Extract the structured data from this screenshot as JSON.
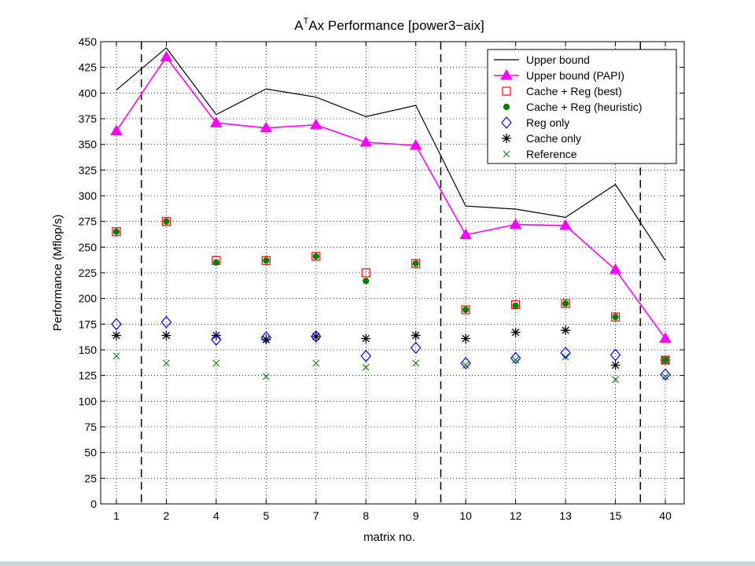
{
  "chart_data": {
    "type": "line",
    "title": {
      "prefix": "A",
      "superscript": "T",
      "rest": "Ax Performance [power3−aix]"
    },
    "xlabel": "matrix no.",
    "ylabel": "Performance (Mflop/s)",
    "categories": [
      "1",
      "2",
      "4",
      "5",
      "7",
      "8",
      "9",
      "10",
      "12",
      "13",
      "15",
      "40"
    ],
    "ylim": [
      0,
      450
    ],
    "yticks": [
      0,
      25,
      50,
      75,
      100,
      125,
      150,
      175,
      200,
      225,
      250,
      275,
      300,
      325,
      350,
      375,
      400,
      425,
      450
    ],
    "grid": true,
    "legend_position": "top-right",
    "group_separators_after_index": [
      0,
      6,
      10
    ],
    "series": [
      {
        "name": "Upper bound",
        "marker": "none",
        "line": true,
        "color": "#000000",
        "values": [
          403,
          444,
          379,
          404,
          396,
          377,
          388,
          290,
          287,
          279,
          311,
          237
        ]
      },
      {
        "name": "Upper bound (PAPI)",
        "marker": "triangle",
        "line": true,
        "color": "#ff00ff",
        "values": [
          363,
          435,
          371,
          366,
          369,
          352,
          349,
          262,
          272,
          271,
          228,
          161
        ]
      },
      {
        "name": "Cache + Reg (best)",
        "marker": "square",
        "line": false,
        "color": "#ff0000",
        "values": [
          265,
          275,
          237,
          237,
          241,
          225,
          234,
          189,
          194,
          195,
          182,
          140
        ]
      },
      {
        "name": "Cache + Reg (heuristic)",
        "marker": "dot",
        "line": false,
        "color": "#008000",
        "values": [
          265,
          275,
          235,
          237,
          241,
          217,
          234,
          189,
          193,
          195,
          182,
          140
        ]
      },
      {
        "name": "Reg only",
        "marker": "diamond",
        "line": false,
        "color": "#0000ff",
        "values": [
          175,
          177,
          160,
          162,
          163,
          144,
          152,
          137,
          142,
          147,
          145,
          126
        ]
      },
      {
        "name": "Cache only",
        "marker": "asterisk",
        "line": false,
        "color": "#000000",
        "values": [
          164,
          164,
          164,
          160,
          163,
          161,
          164,
          161,
          167,
          169,
          135,
          140
        ]
      },
      {
        "name": "Reference",
        "marker": "x",
        "line": false,
        "color": "#008000",
        "values": [
          144,
          137,
          137,
          124,
          137,
          133,
          137,
          135,
          140,
          143,
          121,
          124
        ]
      }
    ]
  }
}
